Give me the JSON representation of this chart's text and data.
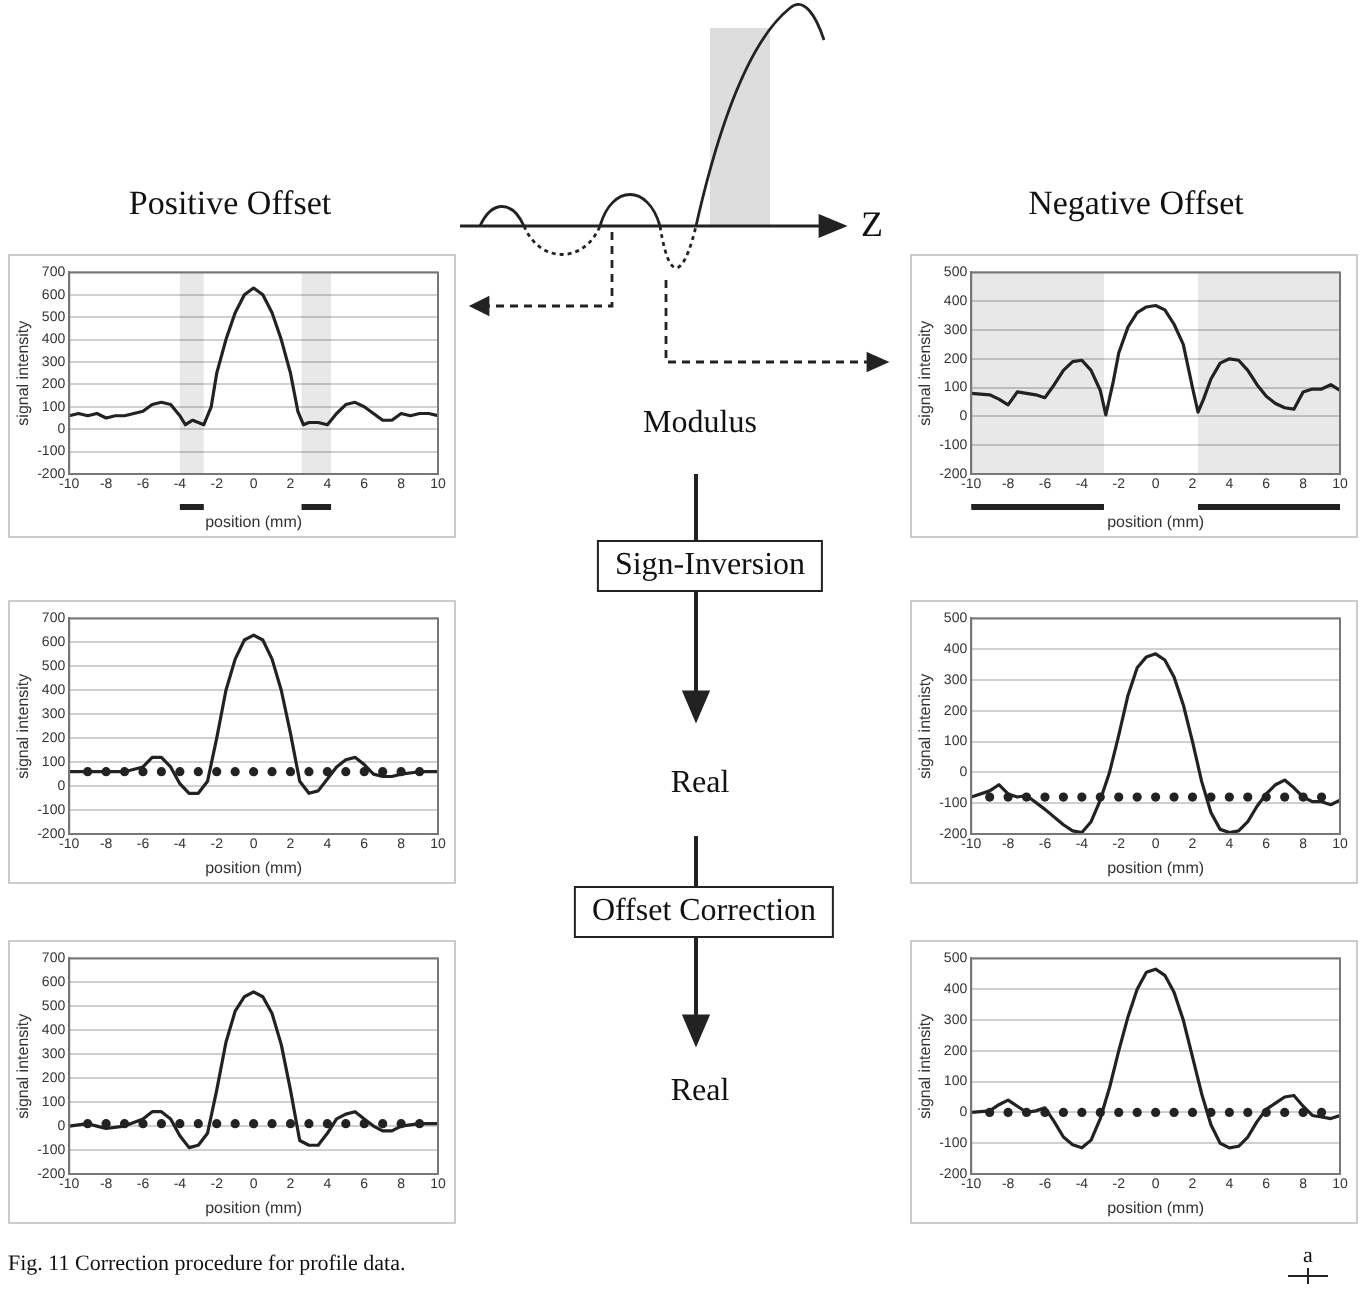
{
  "chart_data": [
    {
      "type": "line",
      "xlabel": "position (mm)",
      "ylabel": "signal intensity",
      "xlim": [
        -10,
        10
      ],
      "xticks": [
        -10,
        -8,
        -6,
        -4,
        -2,
        0,
        2,
        4,
        6,
        8,
        10
      ],
      "ylim": [
        -200,
        700
      ],
      "yticks": [
        -200,
        -100,
        0,
        100,
        200,
        300,
        400,
        500,
        600,
        700
      ],
      "grid": "y",
      "marker": "none",
      "bands": [
        {
          "axis": "x",
          "from": -4,
          "to": -2.7,
          "color": "#222222"
        },
        {
          "axis": "x",
          "from": 2.6,
          "to": 4.2,
          "color": "#222222"
        }
      ],
      "series": [
        {
          "color": "#222222",
          "x": [
            -10,
            -9.5,
            -9,
            -8.5,
            -8,
            -7.5,
            -7,
            -6.5,
            -6,
            -5.5,
            -5,
            -4.5,
            -4,
            -3.7,
            -3.3,
            -3,
            -2.7,
            -2.3,
            -2,
            -1.5,
            -1,
            -0.5,
            0,
            0.5,
            1,
            1.5,
            2,
            2.4,
            2.7,
            3,
            3.5,
            4,
            4.5,
            5,
            5.5,
            6,
            6.5,
            7,
            7.5,
            8,
            8.5,
            9,
            9.5,
            10
          ],
          "values": [
            60,
            70,
            60,
            70,
            50,
            60,
            60,
            70,
            80,
            110,
            120,
            110,
            60,
            20,
            40,
            30,
            20,
            100,
            250,
            400,
            520,
            600,
            630,
            600,
            520,
            400,
            250,
            80,
            20,
            30,
            30,
            20,
            70,
            110,
            120,
            100,
            70,
            40,
            40,
            70,
            60,
            70,
            70,
            60
          ]
        }
      ]
    },
    {
      "type": "line",
      "xlabel": "position (mm)",
      "ylabel": "signal intensity",
      "xlim": [
        -10,
        10
      ],
      "xticks": [
        -10,
        -8,
        -6,
        -4,
        -2,
        0,
        2,
        4,
        6,
        8,
        10
      ],
      "ylim": [
        -200,
        500
      ],
      "yticks": [
        -200,
        -100,
        0,
        100,
        200,
        300,
        400,
        500
      ],
      "grid": "y",
      "marker": "none",
      "bands": [
        {
          "axis": "x",
          "from": -10,
          "to": -2.8,
          "color": "#222222"
        },
        {
          "axis": "x",
          "from": 2.3,
          "to": 10,
          "color": "#222222"
        }
      ],
      "series": [
        {
          "color": "#222222",
          "x": [
            -10,
            -9,
            -8.5,
            -8,
            -7.5,
            -7,
            -6.5,
            -6,
            -5.5,
            -5,
            -4.5,
            -4,
            -3.5,
            -3,
            -2.7,
            -2.3,
            -2,
            -1.5,
            -1,
            -0.5,
            0,
            0.5,
            1,
            1.5,
            2,
            2.3,
            2.6,
            3,
            3.5,
            4,
            4.5,
            5,
            5.5,
            6,
            6.5,
            7,
            7.5,
            8,
            8.5,
            9,
            9.5,
            10
          ],
          "values": [
            80,
            75,
            60,
            40,
            85,
            80,
            75,
            65,
            110,
            160,
            190,
            195,
            160,
            90,
            5,
            120,
            220,
            310,
            360,
            380,
            385,
            370,
            320,
            250,
            100,
            15,
            60,
            130,
            185,
            200,
            195,
            160,
            110,
            70,
            45,
            30,
            25,
            85,
            95,
            95,
            110,
            90
          ]
        }
      ]
    },
    {
      "type": "line",
      "xlabel": "position (mm)",
      "ylabel": "signal intensity",
      "xlim": [
        -10,
        10
      ],
      "xticks": [
        -10,
        -8,
        -6,
        -4,
        -2,
        0,
        2,
        4,
        6,
        8,
        10
      ],
      "ylim": [
        -200,
        700
      ],
      "yticks": [
        -200,
        -100,
        0,
        100,
        200,
        300,
        400,
        500,
        600,
        700
      ],
      "grid": "y",
      "marker": "none",
      "series": [
        {
          "color": "#222222",
          "x": [
            -10,
            -9,
            -8,
            -7,
            -6,
            -5.5,
            -5,
            -4.5,
            -4,
            -3.5,
            -3,
            -2.5,
            -2,
            -1.5,
            -1,
            -0.5,
            0,
            0.5,
            1,
            1.5,
            2,
            2.5,
            3,
            3.5,
            4,
            4.5,
            5,
            5.5,
            6,
            6.5,
            7,
            7.5,
            8,
            9,
            10
          ],
          "values": [
            60,
            60,
            60,
            60,
            80,
            120,
            120,
            80,
            10,
            -30,
            -30,
            20,
            200,
            400,
            530,
            610,
            630,
            610,
            530,
            400,
            220,
            20,
            -30,
            -20,
            30,
            80,
            110,
            120,
            90,
            50,
            40,
            40,
            50,
            60,
            60
          ]
        },
        {
          "type": "scatter",
          "marker": "circle",
          "color": "#222222",
          "x": [
            -9,
            -8,
            -7,
            -6,
            -5,
            -4,
            -3,
            -2,
            -1,
            0,
            1,
            2,
            3,
            4,
            5,
            6,
            7,
            8,
            9
          ],
          "values": [
            60,
            60,
            60,
            60,
            60,
            60,
            60,
            60,
            60,
            60,
            60,
            60,
            60,
            60,
            60,
            60,
            60,
            60,
            60
          ]
        }
      ]
    },
    {
      "type": "line",
      "xlabel": "position (mm)",
      "ylabel": "signal intenisty",
      "xlim": [
        -10,
        10
      ],
      "xticks": [
        -10,
        -8,
        -6,
        -4,
        -2,
        0,
        2,
        4,
        6,
        8,
        10
      ],
      "ylim": [
        -200,
        500
      ],
      "yticks": [
        -200,
        -100,
        0,
        100,
        200,
        300,
        400,
        500
      ],
      "grid": "y",
      "marker": "none",
      "series": [
        {
          "color": "#222222",
          "x": [
            -10,
            -9,
            -8.5,
            -8,
            -7.5,
            -7,
            -6,
            -5,
            -4.5,
            -4,
            -3.5,
            -3,
            -2.5,
            -2,
            -1.5,
            -1,
            -0.5,
            0,
            0.5,
            1,
            1.5,
            2,
            2.5,
            3,
            3.5,
            4,
            4.5,
            5,
            5.5,
            6,
            6.5,
            7,
            7.5,
            8,
            8.5,
            9,
            9.5,
            10
          ],
          "values": [
            -80,
            -60,
            -40,
            -70,
            -80,
            -75,
            -120,
            -170,
            -190,
            -195,
            -160,
            -90,
            0,
            120,
            250,
            340,
            375,
            385,
            365,
            310,
            220,
            100,
            -30,
            -130,
            -185,
            -195,
            -190,
            -160,
            -110,
            -70,
            -40,
            -25,
            -50,
            -80,
            -95,
            -95,
            -105,
            -90
          ]
        },
        {
          "type": "scatter",
          "marker": "circle",
          "color": "#222222",
          "x": [
            -9,
            -8,
            -7,
            -6,
            -5,
            -4,
            -3,
            -2,
            -1,
            0,
            1,
            2,
            3,
            4,
            5,
            6,
            7,
            8,
            9
          ],
          "values": [
            -80,
            -80,
            -80,
            -80,
            -80,
            -80,
            -80,
            -80,
            -80,
            -80,
            -80,
            -80,
            -80,
            -80,
            -80,
            -80,
            -80,
            -80,
            -80
          ]
        }
      ]
    },
    {
      "type": "line",
      "xlabel": "position (mm)",
      "ylabel": "signal intensity",
      "xlim": [
        -10,
        10
      ],
      "xticks": [
        -10,
        -8,
        -6,
        -4,
        -2,
        0,
        2,
        4,
        6,
        8,
        10
      ],
      "ylim": [
        -200,
        700
      ],
      "yticks": [
        -200,
        -100,
        0,
        100,
        200,
        300,
        400,
        500,
        600,
        700
      ],
      "grid": "y",
      "marker": "none",
      "series": [
        {
          "color": "#222222",
          "x": [
            -10,
            -9,
            -8.5,
            -8,
            -7,
            -6,
            -5.5,
            -5,
            -4.5,
            -4,
            -3.5,
            -3,
            -2.5,
            -2,
            -1.5,
            -1,
            -0.5,
            0,
            0.5,
            1,
            1.5,
            2,
            2.5,
            3,
            3.5,
            4,
            4.5,
            5,
            5.5,
            6,
            6.5,
            7,
            7.5,
            8,
            9,
            10
          ],
          "values": [
            0,
            10,
            0,
            -10,
            0,
            30,
            60,
            60,
            30,
            -40,
            -90,
            -80,
            -30,
            150,
            350,
            480,
            540,
            560,
            540,
            470,
            340,
            150,
            -60,
            -80,
            -80,
            -30,
            30,
            50,
            60,
            30,
            0,
            -20,
            -20,
            0,
            10,
            10
          ]
        },
        {
          "type": "scatter",
          "marker": "circle",
          "color": "#222222",
          "x": [
            -9,
            -8,
            -7,
            -6,
            -5,
            -4,
            -3,
            -2,
            -1,
            0,
            1,
            2,
            3,
            4,
            5,
            6,
            7,
            8,
            9
          ],
          "values": [
            10,
            10,
            10,
            10,
            10,
            10,
            10,
            10,
            10,
            10,
            10,
            10,
            10,
            10,
            10,
            10,
            10,
            10,
            10
          ]
        }
      ]
    },
    {
      "type": "line",
      "xlabel": "position (mm)",
      "ylabel": "signal intensity",
      "xlim": [
        -10,
        10
      ],
      "xticks": [
        -10,
        -8,
        -6,
        -4,
        -2,
        0,
        2,
        4,
        6,
        8,
        10
      ],
      "ylim": [
        -200,
        500
      ],
      "yticks": [
        -200,
        -100,
        0,
        100,
        200,
        300,
        400,
        500
      ],
      "grid": "y",
      "marker": "none",
      "series": [
        {
          "color": "#222222",
          "x": [
            -10,
            -9,
            -8.5,
            -8,
            -7.5,
            -7,
            -6.5,
            -6,
            -5.5,
            -5,
            -4.5,
            -4,
            -3.5,
            -3,
            -2.5,
            -2,
            -1.5,
            -1,
            -0.5,
            0,
            0.5,
            1,
            1.5,
            2,
            2.5,
            3,
            3.5,
            4,
            4.5,
            5,
            5.5,
            6,
            6.5,
            7,
            7.5,
            8,
            8.5,
            9,
            9.5,
            10
          ],
          "values": [
            0,
            5,
            25,
            40,
            20,
            0,
            5,
            15,
            -30,
            -80,
            -105,
            -115,
            -90,
            -20,
            80,
            200,
            310,
            400,
            455,
            465,
            445,
            390,
            300,
            180,
            60,
            -40,
            -100,
            -115,
            -110,
            -80,
            -30,
            10,
            30,
            50,
            55,
            20,
            -10,
            -15,
            -20,
            -10
          ]
        },
        {
          "type": "scatter",
          "marker": "circle",
          "color": "#222222",
          "x": [
            -9,
            -8,
            -7,
            -6,
            -5,
            -4,
            -3,
            -2,
            -1,
            0,
            1,
            2,
            3,
            4,
            5,
            6,
            7,
            8,
            9
          ],
          "values": [
            0,
            0,
            0,
            0,
            0,
            0,
            0,
            0,
            0,
            0,
            0,
            0,
            0,
            0,
            0,
            0,
            0,
            0,
            0
          ]
        }
      ]
    },
    {
      "type": "other",
      "annotations": [
        "Positive Offset",
        "Negative Offset",
        "Z",
        "Modulus",
        "Sign-Inversion",
        "Real",
        "Offset Correction",
        "Real",
        "Fig. 11  Correction procedure for profile data.",
        "a"
      ]
    }
  ]
}
